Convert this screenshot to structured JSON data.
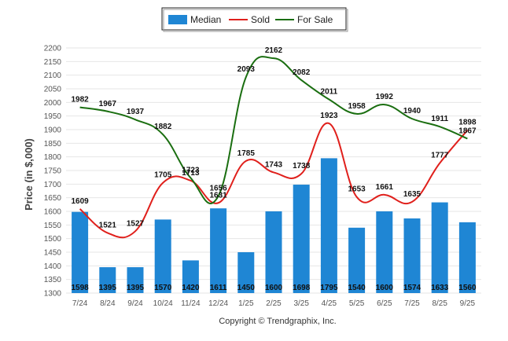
{
  "chart_data": {
    "type": "bar",
    "ylabel": "Price (in $,000)",
    "xlabel": "",
    "ylim": [
      1300,
      2200
    ],
    "ytick_step": 50,
    "categories": [
      "7/24",
      "8/24",
      "9/24",
      "10/24",
      "11/24",
      "12/24",
      "1/25",
      "2/25",
      "3/25",
      "4/25",
      "5/25",
      "6/25",
      "7/25",
      "8/25",
      "9/25"
    ],
    "series": [
      {
        "name": "Median",
        "type": "bar",
        "color": "#1f86d4",
        "values": [
          1598,
          1395,
          1395,
          1570,
          1420,
          1611,
          1450,
          1600,
          1698,
          1795,
          1540,
          1600,
          1574,
          1633,
          1560
        ]
      },
      {
        "name": "Sold",
        "type": "line",
        "color": "#e0201c",
        "values": [
          1609,
          1521,
          1527,
          1705,
          1713,
          1631,
          1785,
          1743,
          1738,
          1923,
          1653,
          1661,
          1635,
          1777,
          1898
        ]
      },
      {
        "name": "For Sale",
        "type": "line",
        "color": "#1a6e10",
        "values": [
          1982,
          1967,
          1937,
          1882,
          1723,
          1656,
          2093,
          2162,
          2082,
          2011,
          1958,
          1992,
          1940,
          1911,
          1867
        ]
      }
    ],
    "legend_position": "top-center",
    "grid": true,
    "copyright": "Copyright © Trendgraphix, Inc."
  }
}
